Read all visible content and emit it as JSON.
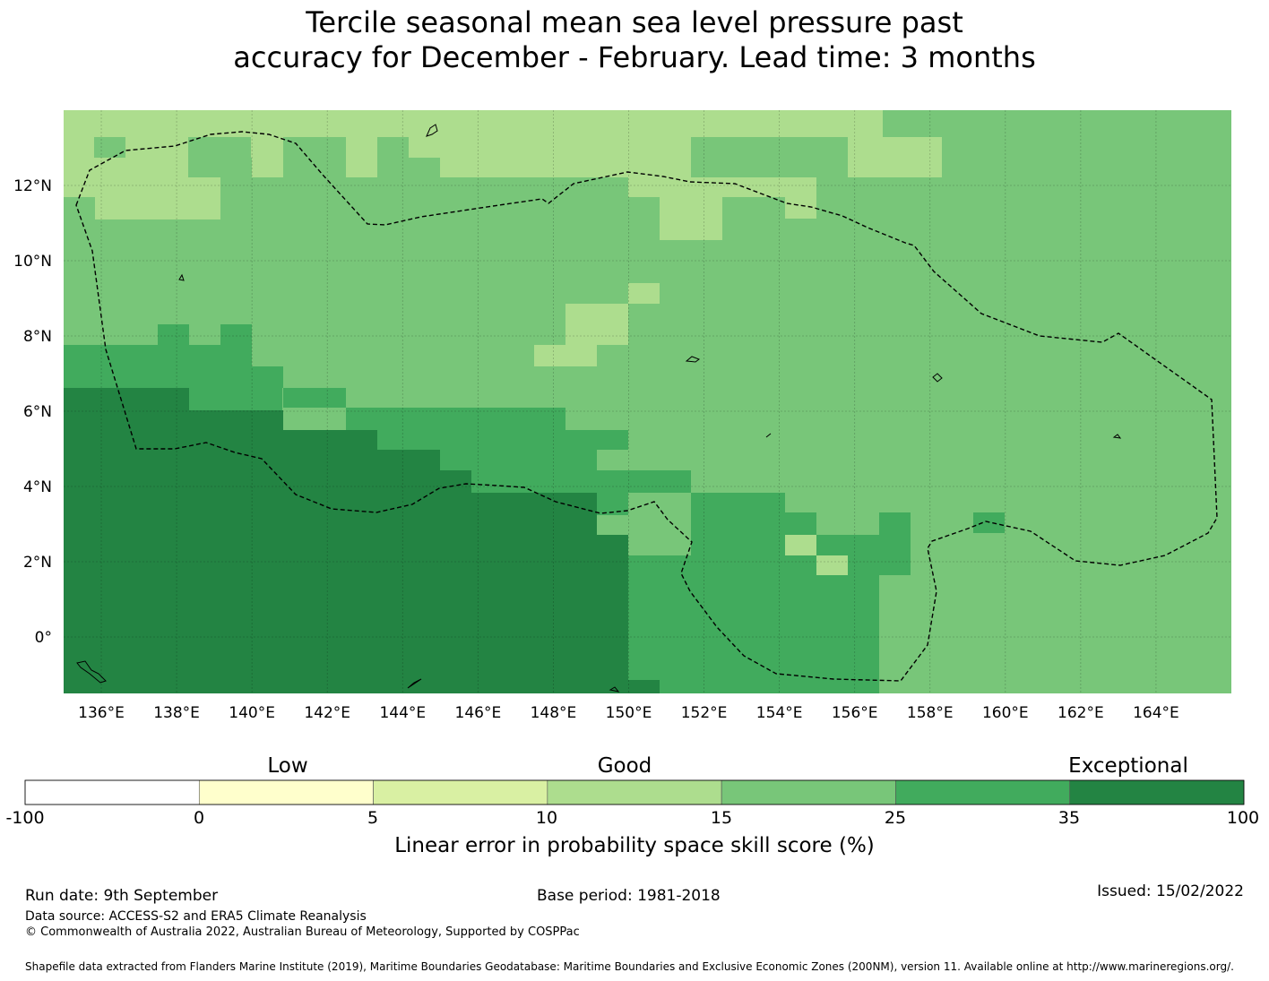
{
  "title_line1": "Tercile seasonal mean sea level pressure past",
  "title_line2": "accuracy for December - February. Lead time: 3 months",
  "map": {
    "lon_range": [
      135,
      166
    ],
    "lat_range": [
      -1.5,
      14
    ],
    "lon_tick_labels": [
      "136°E",
      "138°E",
      "140°E",
      "142°E",
      "144°E",
      "146°E",
      "148°E",
      "150°E",
      "152°E",
      "154°E",
      "156°E",
      "158°E",
      "160°E",
      "162°E",
      "164°E"
    ],
    "lon_tick_values": [
      136,
      138,
      140,
      142,
      144,
      146,
      148,
      150,
      152,
      154,
      156,
      158,
      160,
      162,
      164
    ],
    "lat_tick_labels": [
      "0°",
      "2°N",
      "4°N",
      "6°N",
      "8°N",
      "10°N",
      "12°N"
    ],
    "lat_tick_values": [
      0,
      2,
      4,
      6,
      8,
      10,
      12
    ],
    "grid_lines": true,
    "eez_boundary": "dashed",
    "dominant_class_by_region": {
      "north_band": "10 to 15",
      "central": "15 to 25",
      "southeast": "15 to 25",
      "equatorial_west": "35 to 100",
      "transition": "25 to 35"
    }
  },
  "colorbar": {
    "category_words": [
      "Low",
      "Good",
      "Exceptional"
    ],
    "tick_labels": [
      "-100",
      "0",
      "5",
      "10",
      "15",
      "25",
      "35",
      "100"
    ],
    "colors": [
      "#ffffff",
      "#ffffcc",
      "#d9f0a3",
      "#addd8e",
      "#78c679",
      "#41ab5d",
      "#238443"
    ],
    "label": "Linear error in probability space skill score (%)"
  },
  "footer": {
    "run_date": "Run date: 9th September",
    "base_period": "Base period: 1981-2018",
    "issued": "Issued: 15/02/2022",
    "data_source": "Data source: ACCESS-S2 and ERA5 Climate Reanalysis",
    "copyright": "© Commonwealth of Australia 2022, Australian Bureau of Meteorology, Supported by COSPPac",
    "shapefile": "Shapefile data extracted from Flanders Marine Institute (2019), Maritime Boundaries Geodatabase: Maritime Boundaries and Exclusive Economic Zones (200NM), version 11. Available online at http://www.marineregions.org/."
  }
}
